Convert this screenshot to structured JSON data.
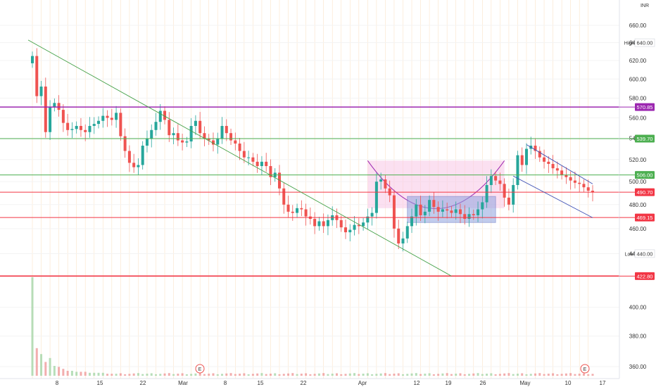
{
  "chart_data": {
    "type": "candlestick",
    "currency_label": "INR",
    "y_scale": "log",
    "ylim": [
      352,
      668
    ],
    "y_ticks": [
      360,
      380,
      400,
      440,
      460,
      480,
      500,
      520,
      540,
      560,
      580,
      600,
      620,
      640,
      660
    ],
    "x_tick_labels": [
      "8",
      "15",
      "22",
      "Mar",
      "8",
      "15",
      "22",
      "Apr",
      "12",
      "19",
      "26",
      "May",
      "10",
      "17"
    ],
    "price_levels": [
      {
        "label": "570.85",
        "value": 570.85,
        "color": "#9c27b0"
      },
      {
        "label": "539.70",
        "value": 539.7,
        "color": "#4caf50"
      },
      {
        "label": "506.00",
        "value": 506.0,
        "color": "#4caf50"
      },
      {
        "label": "490.70",
        "value": 490.7,
        "color": "#f23645"
      },
      {
        "label": "469.15",
        "value": 469.15,
        "color": "#f23645"
      },
      {
        "label": "422.80",
        "value": 422.8,
        "color": "#f23645"
      }
    ],
    "high_label": {
      "text": "High",
      "value_text": "640.00",
      "value": 640
    },
    "low_label": {
      "text": "Low",
      "value_text": "440.00",
      "value": 440
    },
    "earnings_markers": [
      "E",
      "E"
    ],
    "trendlines": [
      {
        "name": "descending-trendline",
        "from": [
          0,
          643
        ],
        "to": [
          95,
          422.8
        ]
      },
      {
        "name": "upper-channel-line",
        "from": [
          112,
          534
        ],
        "to": [
          127,
          498
        ]
      },
      {
        "name": "lower-channel-line",
        "from": [
          109,
          505
        ],
        "to": [
          127,
          469
        ]
      }
    ],
    "patterns": [
      {
        "name": "cup-rectangle",
        "x0": 76,
        "x1": 107,
        "ylow": 477,
        "yhigh": 519
      },
      {
        "name": "consolidation-box",
        "x0": 85,
        "x1": 105,
        "ylow": 465,
        "yhigh": 487
      }
    ],
    "series_close": [
      625,
      582,
      592,
      546,
      571,
      575,
      568,
      555,
      548,
      549,
      552,
      548,
      546,
      552,
      554,
      557,
      562,
      560,
      558,
      565,
      542,
      528,
      517,
      513,
      515,
      533,
      540,
      548,
      556,
      567,
      558,
      543,
      545,
      538,
      536,
      537,
      552,
      557,
      545,
      540,
      538,
      534,
      540,
      552,
      545,
      538,
      535,
      528,
      522,
      522,
      518,
      514,
      518,
      514,
      504,
      508,
      494,
      480,
      474,
      473,
      477,
      476,
      470,
      468,
      462,
      466,
      462,
      467,
      471,
      467,
      461,
      457,
      459,
      463,
      462,
      465,
      470,
      473,
      500,
      502,
      494,
      488,
      460,
      448,
      452,
      462,
      470,
      480,
      471,
      474,
      484,
      478,
      474,
      476,
      475,
      473,
      476,
      472,
      468,
      472,
      471,
      476,
      482,
      497,
      505,
      501,
      498,
      486,
      480,
      497,
      524,
      515,
      530,
      533,
      528,
      522,
      518,
      516,
      512,
      510,
      506,
      504,
      501,
      499,
      498,
      495,
      492,
      490.7
    ],
    "volume_relative": [
      1.0,
      0.28,
      0.22,
      0.14,
      0.18,
      0.1,
      0.09,
      0.07,
      0.05,
      0.05,
      0.04,
      0.04,
      0.04,
      0.03,
      0.03,
      0.03,
      0.03,
      0.02,
      0.02,
      0.02
    ]
  }
}
